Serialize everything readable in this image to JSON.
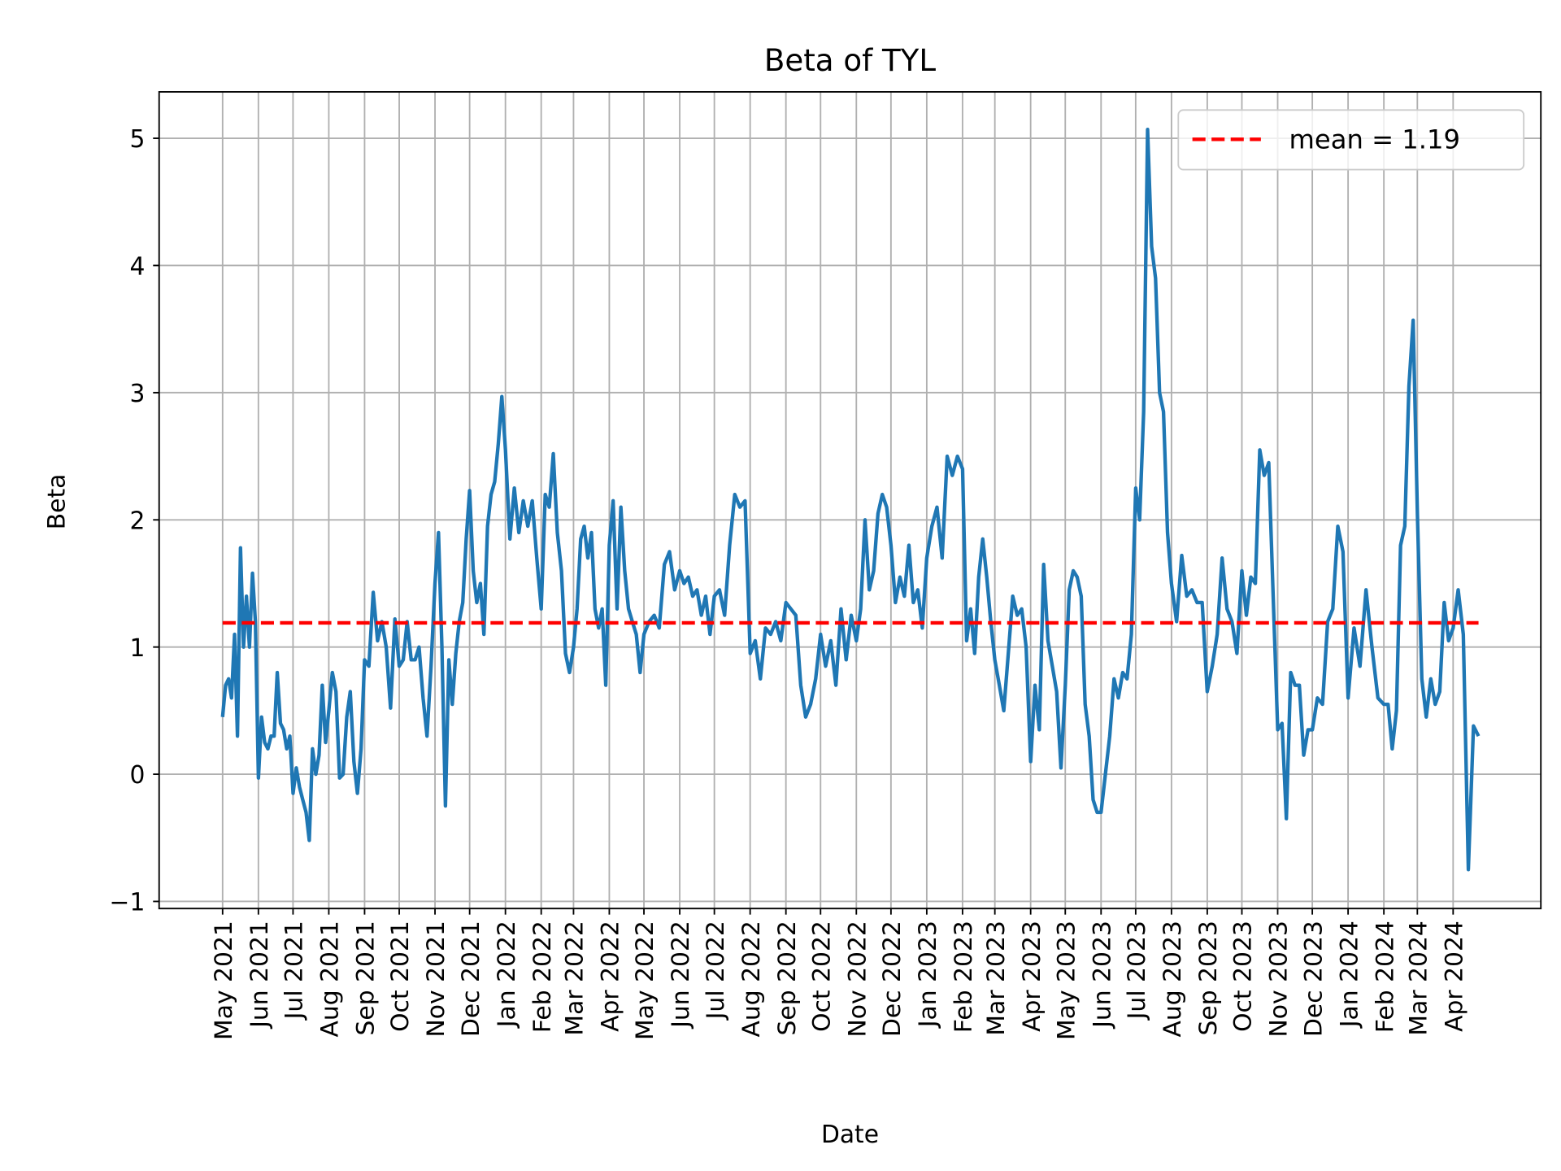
{
  "chart_data": {
    "type": "line",
    "title": "Beta of TYL",
    "xlabel": "Date",
    "ylabel": "Beta",
    "xlim": [
      "2021-03-07",
      "2024-06-16"
    ],
    "ylim": [
      -1.056,
      5.365
    ],
    "grid": true,
    "legend_position": "top-right",
    "y_ticks": [
      {
        "value": -1,
        "label": "−1"
      },
      {
        "value": 0,
        "label": "0"
      },
      {
        "value": 1,
        "label": "1"
      },
      {
        "value": 2,
        "label": "2"
      },
      {
        "value": 3,
        "label": "3"
      },
      {
        "value": 4,
        "label": "4"
      },
      {
        "value": 5,
        "label": "5"
      }
    ],
    "x_ticks": [
      {
        "date": "2021-05-01",
        "label": "May 2021"
      },
      {
        "date": "2021-06-01",
        "label": "Jun 2021"
      },
      {
        "date": "2021-07-01",
        "label": "Jul 2021"
      },
      {
        "date": "2021-08-01",
        "label": "Aug 2021"
      },
      {
        "date": "2021-09-01",
        "label": "Sep 2021"
      },
      {
        "date": "2021-10-01",
        "label": "Oct 2021"
      },
      {
        "date": "2021-11-01",
        "label": "Nov 2021"
      },
      {
        "date": "2021-12-01",
        "label": "Dec 2021"
      },
      {
        "date": "2022-01-01",
        "label": "Jan 2022"
      },
      {
        "date": "2022-02-01",
        "label": "Feb 2022"
      },
      {
        "date": "2022-03-01",
        "label": "Mar 2022"
      },
      {
        "date": "2022-04-01",
        "label": "Apr 2022"
      },
      {
        "date": "2022-05-01",
        "label": "May 2022"
      },
      {
        "date": "2022-06-01",
        "label": "Jun 2022"
      },
      {
        "date": "2022-07-01",
        "label": "Jul 2022"
      },
      {
        "date": "2022-08-01",
        "label": "Aug 2022"
      },
      {
        "date": "2022-09-01",
        "label": "Sep 2022"
      },
      {
        "date": "2022-10-01",
        "label": "Oct 2022"
      },
      {
        "date": "2022-11-01",
        "label": "Nov 2022"
      },
      {
        "date": "2022-12-01",
        "label": "Dec 2022"
      },
      {
        "date": "2023-01-01",
        "label": "Jan 2023"
      },
      {
        "date": "2023-02-01",
        "label": "Feb 2023"
      },
      {
        "date": "2023-03-01",
        "label": "Mar 2023"
      },
      {
        "date": "2023-04-01",
        "label": "Apr 2023"
      },
      {
        "date": "2023-05-01",
        "label": "May 2023"
      },
      {
        "date": "2023-06-01",
        "label": "Jun 2023"
      },
      {
        "date": "2023-07-01",
        "label": "Jul 2023"
      },
      {
        "date": "2023-08-01",
        "label": "Aug 2023"
      },
      {
        "date": "2023-09-01",
        "label": "Sep 2023"
      },
      {
        "date": "2023-10-01",
        "label": "Oct 2023"
      },
      {
        "date": "2023-11-01",
        "label": "Nov 2023"
      },
      {
        "date": "2023-12-01",
        "label": "Dec 2023"
      },
      {
        "date": "2024-01-01",
        "label": "Jan 2024"
      },
      {
        "date": "2024-02-01",
        "label": "Feb 2024"
      },
      {
        "date": "2024-03-01",
        "label": "Mar 2024"
      },
      {
        "date": "2024-04-01",
        "label": "Apr 2024"
      }
    ],
    "series": [
      {
        "color": "#1f77b4",
        "end_date": "2024-04-23",
        "values_by_month": [
          {
            "month": "2021-05",
            "values": [
              0.45,
              0.7,
              0.75,
              0.6,
              1.1,
              0.3,
              1.78,
              1.0,
              1.4,
              1.0,
              1.58,
              1.2
            ]
          },
          {
            "month": "2021-06",
            "values": [
              -0.03,
              0.45,
              0.25,
              0.2,
              0.3,
              0.3,
              0.8,
              0.4,
              0.35,
              0.2,
              0.3
            ]
          },
          {
            "month": "2021-07",
            "values": [
              -0.15,
              0.05,
              -0.1,
              -0.2,
              -0.3,
              -0.52,
              0.2,
              0.0,
              0.15,
              0.7,
              0.25
            ]
          },
          {
            "month": "2021-08",
            "values": [
              0.5,
              0.8,
              0.65,
              -0.03,
              0.0,
              0.45,
              0.65,
              0.1,
              -0.15,
              0.2
            ]
          },
          {
            "month": "2021-09",
            "values": [
              0.9,
              0.85,
              1.43,
              1.05,
              1.2,
              1.0,
              0.52,
              1.22
            ]
          },
          {
            "month": "2021-10",
            "values": [
              0.85,
              0.9,
              1.2,
              0.9,
              0.9,
              1.0,
              0.6,
              0.3,
              0.85
            ]
          },
          {
            "month": "2021-11",
            "values": [
              1.5,
              1.9,
              1.0,
              -0.25,
              0.9,
              0.55,
              0.95,
              1.2,
              1.35,
              1.85
            ]
          },
          {
            "month": "2021-12",
            "values": [
              2.23,
              1.6,
              1.35,
              1.5,
              1.1,
              1.95,
              2.2,
              2.3,
              2.6,
              2.97
            ]
          },
          {
            "month": "2022-01",
            "values": [
              2.55,
              1.85,
              2.25,
              1.9,
              2.15,
              1.95,
              2.15,
              1.7
            ]
          },
          {
            "month": "2022-02",
            "values": [
              1.3,
              2.2,
              2.1,
              2.52,
              1.9,
              1.6,
              0.95,
              0.8
            ]
          },
          {
            "month": "2022-03",
            "values": [
              1.0,
              1.3,
              1.85,
              1.95,
              1.7,
              1.9,
              1.3,
              1.15,
              1.3,
              0.7
            ]
          },
          {
            "month": "2022-04",
            "values": [
              1.8,
              2.15,
              1.3,
              2.1,
              1.6,
              1.3,
              1.2,
              1.1,
              0.8
            ]
          },
          {
            "month": "2022-05",
            "values": [
              1.1,
              1.2,
              1.25,
              1.15,
              1.65,
              1.75,
              1.45
            ]
          },
          {
            "month": "2022-06",
            "values": [
              1.6,
              1.5,
              1.55,
              1.4,
              1.45,
              1.25,
              1.4,
              1.1
            ]
          },
          {
            "month": "2022-07",
            "values": [
              1.4,
              1.45,
              1.25,
              1.8,
              2.2,
              2.1,
              2.15
            ]
          },
          {
            "month": "2022-08",
            "values": [
              0.95,
              1.05,
              0.75,
              1.15,
              1.1,
              1.2,
              1.05
            ]
          },
          {
            "month": "2022-09",
            "values": [
              1.35,
              1.3,
              1.25,
              0.7,
              0.45,
              0.55,
              0.75
            ]
          },
          {
            "month": "2022-10",
            "values": [
              1.1,
              0.85,
              1.05,
              0.7,
              1.3,
              0.9,
              1.25
            ]
          },
          {
            "month": "2022-11",
            "values": [
              1.05,
              1.3,
              2.0,
              1.45,
              1.6,
              2.05,
              2.2,
              2.1
            ]
          },
          {
            "month": "2022-12",
            "values": [
              1.8,
              1.35,
              1.55,
              1.4,
              1.8,
              1.35,
              1.45,
              1.15
            ]
          },
          {
            "month": "2023-01",
            "values": [
              1.7,
              1.95,
              2.1,
              1.7,
              2.5,
              2.35,
              2.5
            ]
          },
          {
            "month": "2023-02",
            "values": [
              2.4,
              1.05,
              1.3,
              0.95,
              1.55,
              1.85,
              1.55,
              1.2
            ]
          },
          {
            "month": "2023-03",
            "values": [
              0.9,
              0.7,
              0.5,
              0.95,
              1.4,
              1.25,
              1.3,
              1.0
            ]
          },
          {
            "month": "2023-04",
            "values": [
              0.1,
              0.7,
              0.35,
              1.65,
              1.05,
              0.85,
              0.65,
              0.05
            ]
          },
          {
            "month": "2023-05",
            "values": [
              0.7,
              1.45,
              1.6,
              1.55,
              1.4,
              0.55,
              0.3,
              -0.2,
              -0.3
            ]
          },
          {
            "month": "2023-06",
            "values": [
              -0.3,
              0.0,
              0.3,
              0.75,
              0.6,
              0.8,
              0.75,
              1.1
            ]
          },
          {
            "month": "2023-07",
            "values": [
              2.25,
              2.0,
              2.85,
              5.07,
              4.15,
              3.9,
              3.0,
              2.85,
              1.9
            ]
          },
          {
            "month": "2023-08",
            "values": [
              1.5,
              1.2,
              1.72,
              1.4,
              1.45,
              1.35,
              1.35
            ]
          },
          {
            "month": "2023-09",
            "values": [
              0.65,
              0.85,
              1.1,
              1.7,
              1.3,
              1.2,
              0.95
            ]
          },
          {
            "month": "2023-10",
            "values": [
              1.6,
              1.25,
              1.55,
              1.5,
              2.55,
              2.35,
              2.45,
              1.4
            ]
          },
          {
            "month": "2023-11",
            "values": [
              0.35,
              0.4,
              -0.35,
              0.8,
              0.7,
              0.7,
              0.15,
              0.35
            ]
          },
          {
            "month": "2023-12",
            "values": [
              0.35,
              0.6,
              0.55,
              1.2,
              1.3,
              1.95,
              1.75
            ]
          },
          {
            "month": "2024-01",
            "values": [
              0.6,
              1.15,
              0.85,
              1.45,
              1.0,
              0.6
            ]
          },
          {
            "month": "2024-02",
            "values": [
              0.55,
              0.55,
              0.2,
              0.5,
              1.8,
              1.95,
              3.05,
              3.57
            ]
          },
          {
            "month": "2024-03",
            "values": [
              2.05,
              0.75,
              0.45,
              0.75,
              0.55,
              0.65,
              1.35,
              1.05
            ]
          },
          {
            "month": "2024-04",
            "values": [
              1.15,
              1.45,
              1.1,
              -0.75,
              0.38,
              0.3
            ]
          }
        ]
      },
      {
        "name": "mean = 1.19",
        "type": "hline",
        "value": 1.19,
        "color": "#ff0000",
        "style": "dashed",
        "x_range": [
          "2021-05-01",
          "2024-04-23"
        ]
      }
    ]
  }
}
